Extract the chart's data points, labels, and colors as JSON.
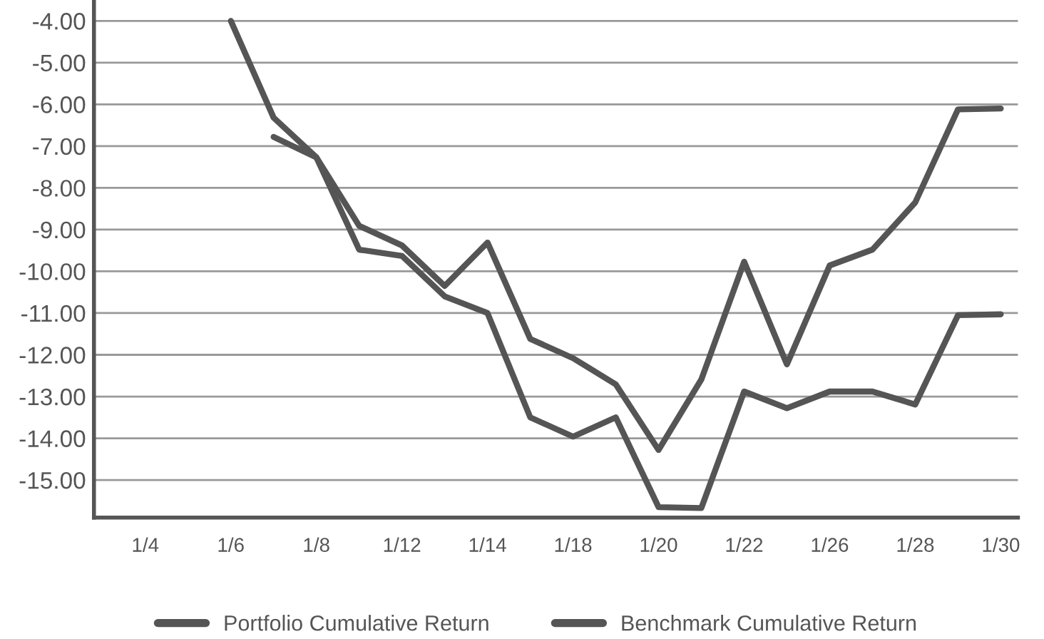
{
  "chart_data": {
    "type": "line",
    "categories": [
      "1/4",
      null,
      "1/6",
      null,
      "1/8",
      null,
      "1/12",
      null,
      "1/14",
      null,
      "1/18",
      null,
      "1/20",
      null,
      "1/22",
      null,
      "1/26",
      null,
      "1/28",
      null,
      "1/30"
    ],
    "series": [
      {
        "name": "Portfolio Cumulative Return",
        "color": "#555555",
        "values": [
          null,
          null,
          -4.0,
          -6.32,
          -7.27,
          -8.91,
          -9.38,
          -10.35,
          -9.31,
          -11.62,
          -12.08,
          -12.71,
          -14.28,
          -12.59,
          -9.77,
          -12.23,
          -9.86,
          -9.48,
          -8.35,
          -6.12,
          -6.1
        ]
      },
      {
        "name": "Benchmark Cumulative Return",
        "color": "#555555",
        "values": [
          null,
          null,
          null,
          -6.78,
          -7.27,
          -9.48,
          -9.63,
          -10.6,
          -11.0,
          -13.5,
          -13.96,
          -13.5,
          -15.65,
          -15.67,
          -12.88,
          -13.28,
          -12.88,
          -12.88,
          -13.19,
          -11.05,
          -11.03
        ]
      }
    ],
    "ylim": [
      -15.9,
      -3.5
    ],
    "yticks": [
      {
        "value": -4,
        "label": "-4.00"
      },
      {
        "value": -5,
        "label": "-5.00"
      },
      {
        "value": -6,
        "label": "-6.00"
      },
      {
        "value": -7,
        "label": "-7.00"
      },
      {
        "value": -8,
        "label": "-8.00"
      },
      {
        "value": -9,
        "label": "-9.00"
      },
      {
        "value": -10,
        "label": "-10.00"
      },
      {
        "value": -11,
        "label": "-11.00"
      },
      {
        "value": -12,
        "label": "-12.00"
      },
      {
        "value": -13,
        "label": "-13.00"
      },
      {
        "value": -14,
        "label": "-14.00"
      },
      {
        "value": -15,
        "label": "-15.00"
      }
    ],
    "grid": "y",
    "legend": "bottom",
    "marker": "none",
    "line_style": "solid"
  }
}
